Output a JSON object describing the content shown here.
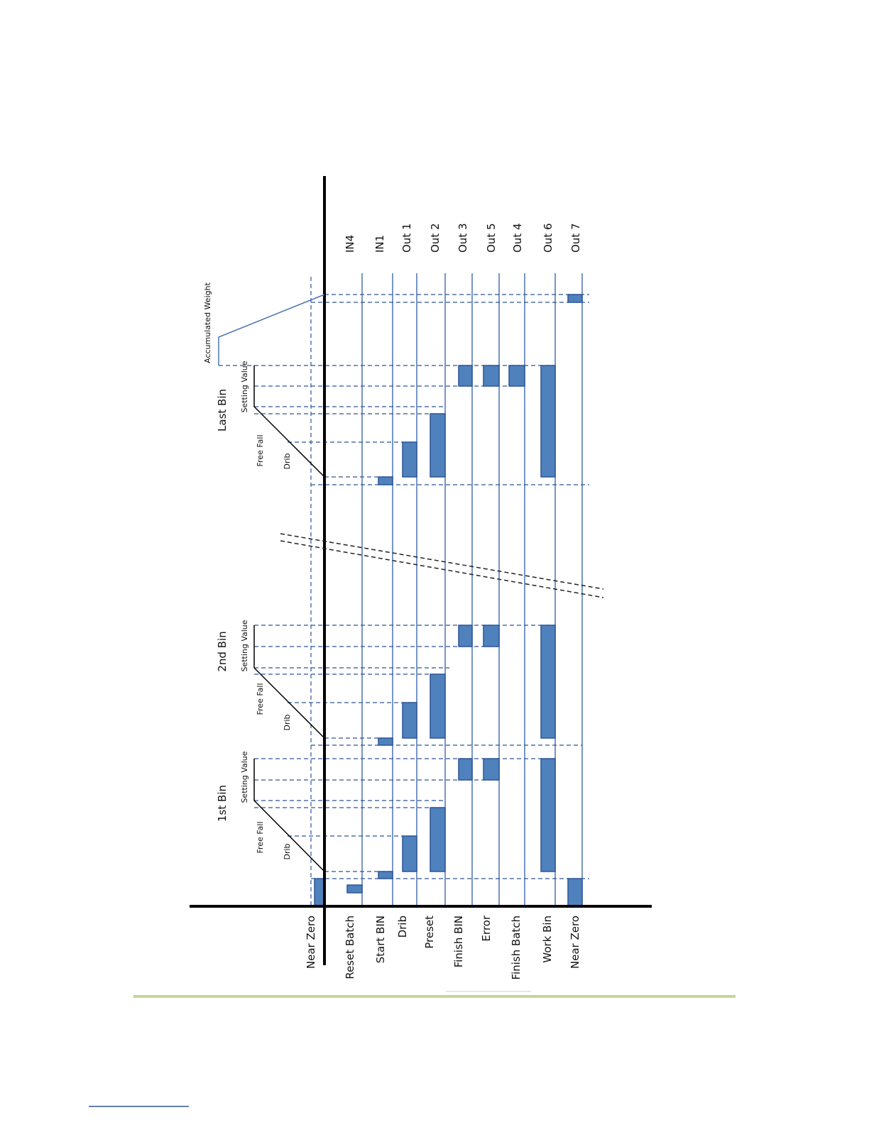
{
  "signal_labels": [
    "Near Zero",
    "Reset Batch",
    "Start BIN",
    "Drib",
    "Preset",
    "Finish BIN",
    "Error",
    "Finish Batch",
    "Work Bin",
    "Near Zero"
  ],
  "io_labels": [
    "IN4",
    "IN1",
    "Out 1",
    "Out 2",
    "Out 3",
    "Out 5",
    "Out 4",
    "Out 6",
    "Out 7"
  ],
  "bins": [
    {
      "title": "1st Bin",
      "setting_value": "Setting Value",
      "free_fall": "Free Fall",
      "drib": "Drib"
    },
    {
      "title": "2nd Bin",
      "setting_value": "Setting Value",
      "free_fall": "Free Fall",
      "drib": "Drib"
    },
    {
      "title": "Last Bin",
      "setting_value": "Setting Value",
      "free_fall": "Free Fall",
      "drib": "Drib"
    }
  ],
  "accumulated_weight": "Accumulated Weight"
}
